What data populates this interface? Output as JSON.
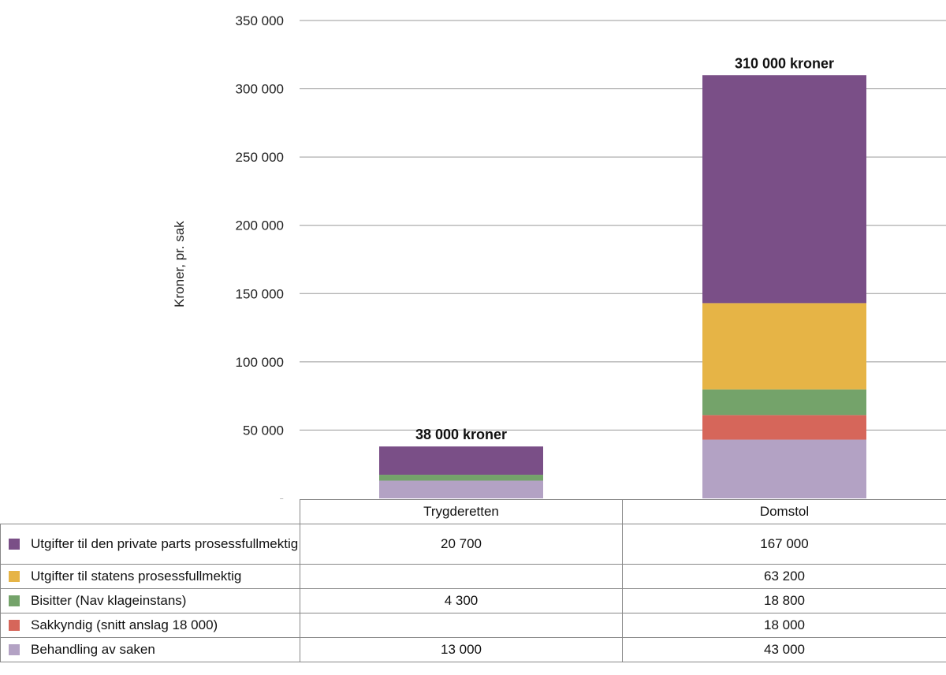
{
  "chart_data": {
    "type": "bar",
    "stacked": true,
    "ylabel": "Kroner, pr. sak",
    "ylim": [
      0,
      350000
    ],
    "ytick_labels": [
      "-",
      "50 000",
      "100 000",
      "150 000",
      "200 000",
      "250 000",
      "300 000",
      "350 000"
    ],
    "ytick_values": [
      0,
      50000,
      100000,
      150000,
      200000,
      250000,
      300000,
      350000
    ],
    "categories": [
      "Trygderetten",
      "Domstol"
    ],
    "totals": [
      38000,
      310000
    ],
    "total_labels": [
      "38 000 kroner",
      "310 000 kroner"
    ],
    "series": [
      {
        "name": "Behandling av saken",
        "color": "#b3a2c4",
        "values": [
          13000,
          43000
        ],
        "labels": [
          "13 000",
          "43 000"
        ]
      },
      {
        "name": "Sakkyndig (snitt anslag 18 000)",
        "color": "#d6665a",
        "values": [
          0,
          18000
        ],
        "labels": [
          "",
          "18 000"
        ]
      },
      {
        "name": "Bisitter (Nav klageinstans)",
        "color": "#74a36a",
        "values": [
          4300,
          18800
        ],
        "labels": [
          "4 300",
          "18 800"
        ]
      },
      {
        "name": "Utgifter til statens prosessfullmektig",
        "color": "#e6b446",
        "values": [
          0,
          63200
        ],
        "labels": [
          "",
          "63 200"
        ]
      },
      {
        "name": "Utgifter til den private parts prosessfullmektig",
        "color": "#7a4f87",
        "values": [
          20700,
          167000
        ],
        "labels": [
          "20 700",
          "167 000"
        ]
      }
    ]
  }
}
